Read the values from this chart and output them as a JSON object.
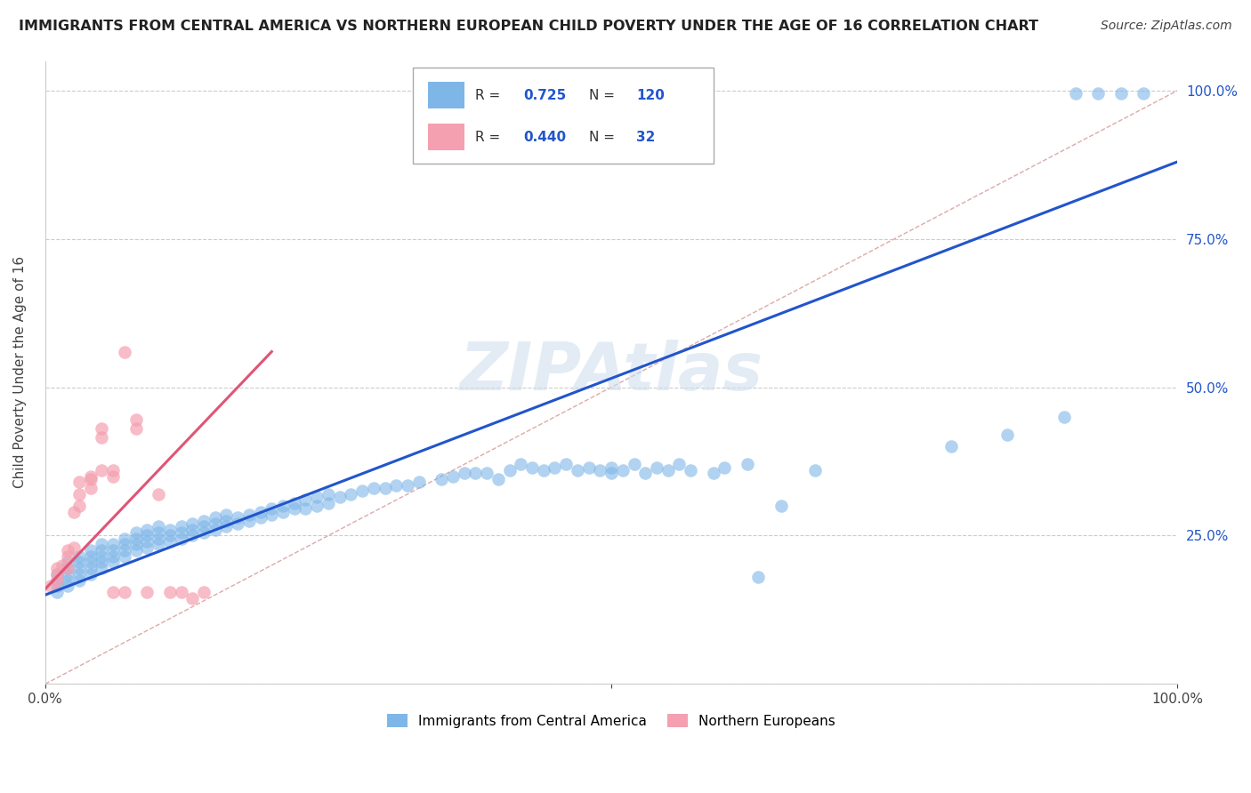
{
  "title": "IMMIGRANTS FROM CENTRAL AMERICA VS NORTHERN EUROPEAN CHILD POVERTY UNDER THE AGE OF 16 CORRELATION CHART",
  "source": "Source: ZipAtlas.com",
  "ylabel": "Child Poverty Under the Age of 16",
  "blue_R": 0.725,
  "blue_N": 120,
  "pink_R": 0.44,
  "pink_N": 32,
  "blue_color": "#7EB6E8",
  "pink_color": "#F4A0B0",
  "blue_line_color": "#2255CC",
  "pink_line_color": "#E05575",
  "legend_label_blue": "Immigrants from Central America",
  "legend_label_pink": "Northern Europeans",
  "blue_scatter": [
    [
      0.01,
      0.155
    ],
    [
      0.01,
      0.165
    ],
    [
      0.01,
      0.175
    ],
    [
      0.01,
      0.185
    ],
    [
      0.02,
      0.165
    ],
    [
      0.02,
      0.175
    ],
    [
      0.02,
      0.185
    ],
    [
      0.02,
      0.195
    ],
    [
      0.02,
      0.205
    ],
    [
      0.03,
      0.175
    ],
    [
      0.03,
      0.185
    ],
    [
      0.03,
      0.195
    ],
    [
      0.03,
      0.205
    ],
    [
      0.03,
      0.215
    ],
    [
      0.04,
      0.185
    ],
    [
      0.04,
      0.195
    ],
    [
      0.04,
      0.205
    ],
    [
      0.04,
      0.215
    ],
    [
      0.04,
      0.225
    ],
    [
      0.05,
      0.195
    ],
    [
      0.05,
      0.205
    ],
    [
      0.05,
      0.215
    ],
    [
      0.05,
      0.225
    ],
    [
      0.05,
      0.235
    ],
    [
      0.06,
      0.205
    ],
    [
      0.06,
      0.215
    ],
    [
      0.06,
      0.225
    ],
    [
      0.06,
      0.235
    ],
    [
      0.07,
      0.215
    ],
    [
      0.07,
      0.225
    ],
    [
      0.07,
      0.235
    ],
    [
      0.07,
      0.245
    ],
    [
      0.08,
      0.225
    ],
    [
      0.08,
      0.235
    ],
    [
      0.08,
      0.245
    ],
    [
      0.08,
      0.255
    ],
    [
      0.09,
      0.23
    ],
    [
      0.09,
      0.24
    ],
    [
      0.09,
      0.25
    ],
    [
      0.09,
      0.26
    ],
    [
      0.1,
      0.235
    ],
    [
      0.1,
      0.245
    ],
    [
      0.1,
      0.255
    ],
    [
      0.1,
      0.265
    ],
    [
      0.11,
      0.24
    ],
    [
      0.11,
      0.25
    ],
    [
      0.11,
      0.26
    ],
    [
      0.12,
      0.245
    ],
    [
      0.12,
      0.255
    ],
    [
      0.12,
      0.265
    ],
    [
      0.13,
      0.25
    ],
    [
      0.13,
      0.26
    ],
    [
      0.13,
      0.27
    ],
    [
      0.14,
      0.255
    ],
    [
      0.14,
      0.265
    ],
    [
      0.14,
      0.275
    ],
    [
      0.15,
      0.26
    ],
    [
      0.15,
      0.27
    ],
    [
      0.15,
      0.28
    ],
    [
      0.16,
      0.265
    ],
    [
      0.16,
      0.275
    ],
    [
      0.16,
      0.285
    ],
    [
      0.17,
      0.27
    ],
    [
      0.17,
      0.28
    ],
    [
      0.18,
      0.275
    ],
    [
      0.18,
      0.285
    ],
    [
      0.19,
      0.28
    ],
    [
      0.19,
      0.29
    ],
    [
      0.2,
      0.285
    ],
    [
      0.2,
      0.295
    ],
    [
      0.21,
      0.29
    ],
    [
      0.21,
      0.3
    ],
    [
      0.22,
      0.295
    ],
    [
      0.22,
      0.305
    ],
    [
      0.23,
      0.295
    ],
    [
      0.23,
      0.31
    ],
    [
      0.24,
      0.3
    ],
    [
      0.24,
      0.315
    ],
    [
      0.25,
      0.305
    ],
    [
      0.25,
      0.32
    ],
    [
      0.26,
      0.315
    ],
    [
      0.27,
      0.32
    ],
    [
      0.28,
      0.325
    ],
    [
      0.29,
      0.33
    ],
    [
      0.3,
      0.33
    ],
    [
      0.31,
      0.335
    ],
    [
      0.32,
      0.335
    ],
    [
      0.33,
      0.34
    ],
    [
      0.35,
      0.345
    ],
    [
      0.36,
      0.35
    ],
    [
      0.37,
      0.355
    ],
    [
      0.38,
      0.355
    ],
    [
      0.39,
      0.355
    ],
    [
      0.4,
      0.345
    ],
    [
      0.41,
      0.36
    ],
    [
      0.42,
      0.37
    ],
    [
      0.43,
      0.365
    ],
    [
      0.44,
      0.36
    ],
    [
      0.45,
      0.365
    ],
    [
      0.46,
      0.37
    ],
    [
      0.47,
      0.36
    ],
    [
      0.48,
      0.365
    ],
    [
      0.49,
      0.36
    ],
    [
      0.5,
      0.355
    ],
    [
      0.5,
      0.365
    ],
    [
      0.51,
      0.36
    ],
    [
      0.52,
      0.37
    ],
    [
      0.53,
      0.355
    ],
    [
      0.54,
      0.365
    ],
    [
      0.55,
      0.36
    ],
    [
      0.56,
      0.37
    ],
    [
      0.57,
      0.36
    ],
    [
      0.59,
      0.355
    ],
    [
      0.6,
      0.365
    ],
    [
      0.62,
      0.37
    ],
    [
      0.63,
      0.18
    ],
    [
      0.65,
      0.3
    ],
    [
      0.68,
      0.36
    ],
    [
      0.8,
      0.4
    ],
    [
      0.85,
      0.42
    ],
    [
      0.9,
      0.45
    ],
    [
      0.91,
      0.995
    ],
    [
      0.93,
      0.995
    ],
    [
      0.95,
      0.995
    ],
    [
      0.97,
      0.995
    ]
  ],
  "pink_scatter": [
    [
      0.005,
      0.165
    ],
    [
      0.01,
      0.175
    ],
    [
      0.01,
      0.185
    ],
    [
      0.01,
      0.195
    ],
    [
      0.015,
      0.2
    ],
    [
      0.02,
      0.195
    ],
    [
      0.02,
      0.215
    ],
    [
      0.02,
      0.225
    ],
    [
      0.025,
      0.23
    ],
    [
      0.025,
      0.29
    ],
    [
      0.03,
      0.3
    ],
    [
      0.03,
      0.32
    ],
    [
      0.03,
      0.34
    ],
    [
      0.04,
      0.33
    ],
    [
      0.04,
      0.345
    ],
    [
      0.04,
      0.35
    ],
    [
      0.05,
      0.36
    ],
    [
      0.05,
      0.415
    ],
    [
      0.05,
      0.43
    ],
    [
      0.06,
      0.155
    ],
    [
      0.06,
      0.35
    ],
    [
      0.06,
      0.36
    ],
    [
      0.07,
      0.155
    ],
    [
      0.07,
      0.56
    ],
    [
      0.08,
      0.43
    ],
    [
      0.08,
      0.445
    ],
    [
      0.09,
      0.155
    ],
    [
      0.1,
      0.32
    ],
    [
      0.11,
      0.155
    ],
    [
      0.12,
      0.155
    ],
    [
      0.13,
      0.145
    ],
    [
      0.14,
      0.155
    ]
  ],
  "blue_line_x": [
    0.0,
    1.0
  ],
  "blue_line_y": [
    0.15,
    0.88
  ],
  "pink_line_x": [
    0.0,
    0.2
  ],
  "pink_line_y": [
    0.16,
    0.56
  ],
  "diag_line_x": [
    0.0,
    1.0
  ],
  "diag_line_y": [
    0.0,
    1.0
  ],
  "ytick_vals": [
    0.0,
    0.25,
    0.5,
    0.75,
    1.0
  ],
  "ytick_labels_right": [
    "",
    "25.0%",
    "50.0%",
    "75.0%",
    "100.0%"
  ],
  "xtick_vals": [
    0.0,
    0.5,
    1.0
  ],
  "xtick_labels": [
    "0.0%",
    "",
    "100.0%"
  ]
}
